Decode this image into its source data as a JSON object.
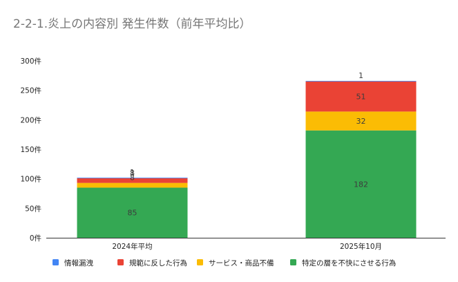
{
  "chart_data": {
    "type": "bar",
    "stacked": true,
    "title": "2-2-1.炎上の内容別 発生件数（前年平均比）",
    "categories": [
      "2024年平均",
      "2025年10月"
    ],
    "series": [
      {
        "name": "特定の層を不快にさせる行為",
        "color": "#34a853",
        "values": [
          85,
          182
        ]
      },
      {
        "name": "サービス・商品不備",
        "color": "#fbbc04",
        "values": [
          8,
          32
        ]
      },
      {
        "name": "規範に反した行為",
        "color": "#ea4335",
        "values": [
          8,
          51
        ]
      },
      {
        "name": "情報漏洩",
        "color": "#4285f4",
        "values": [
          1,
          1
        ]
      }
    ],
    "legend_order": [
      3,
      2,
      1,
      0
    ],
    "y_ticks": [
      "0件",
      "50件",
      "100件",
      "150件",
      "200件",
      "250件",
      "300件"
    ],
    "ylim": [
      0,
      300
    ],
    "grid": false,
    "legend_position": "bottom"
  }
}
